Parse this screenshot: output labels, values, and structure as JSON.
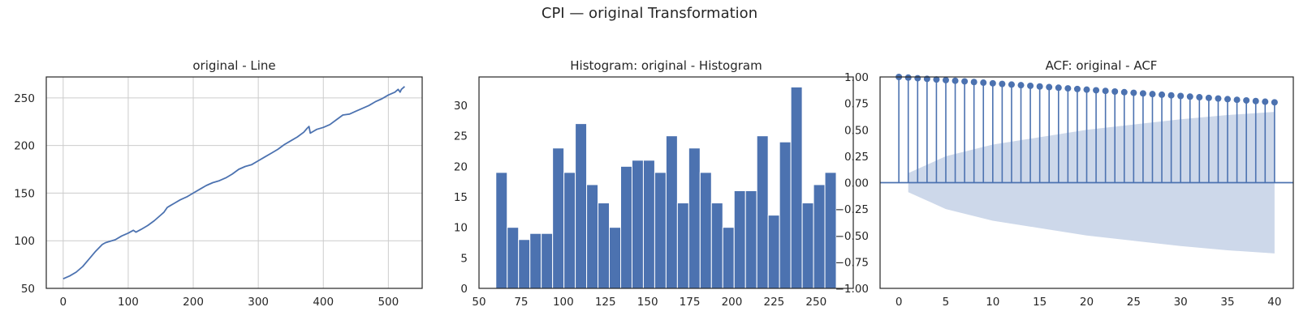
{
  "figure": {
    "suptitle": "CPI — original Transformation"
  },
  "colors": {
    "series": "#4c72b0",
    "confidence_band": "#cdd8ea",
    "grid": "#cccccc",
    "axes": "#262626",
    "background": "#ffffff"
  },
  "chart_data": [
    {
      "type": "line",
      "title": "original - Line",
      "xlabel": "",
      "ylabel": "",
      "xlim": [
        -26,
        552
      ],
      "ylim": [
        50,
        272
      ],
      "xticks": [
        0,
        100,
        200,
        300,
        400,
        500
      ],
      "yticks": [
        50,
        100,
        150,
        200,
        250
      ],
      "grid": true,
      "series": [
        {
          "x": [
            0,
            10,
            20,
            30,
            40,
            50,
            60,
            65,
            70,
            80,
            90,
            100,
            108,
            112,
            120,
            130,
            140,
            150,
            155,
            160,
            165,
            170,
            180,
            190,
            200,
            210,
            220,
            230,
            240,
            250,
            260,
            270,
            280,
            290,
            300,
            310,
            320,
            330,
            340,
            350,
            360,
            370,
            375,
            378,
            380,
            385,
            390,
            400,
            410,
            420,
            430,
            440,
            450,
            460,
            470,
            480,
            490,
            500,
            510,
            515,
            518,
            520,
            525
          ],
          "y": [
            60,
            63,
            67,
            73,
            81,
            89,
            96,
            98,
            99,
            101,
            105,
            108,
            111,
            109,
            112,
            116,
            121,
            127,
            130,
            135,
            137,
            139,
            143,
            146,
            150,
            154,
            158,
            161,
            163,
            166,
            170,
            175,
            178,
            180,
            184,
            188,
            192,
            196,
            201,
            205,
            209,
            214,
            218,
            220,
            213,
            215,
            217,
            219,
            222,
            227,
            232,
            233,
            236,
            239,
            242,
            246,
            249,
            253,
            256,
            259,
            256,
            259,
            262
          ]
        }
      ]
    },
    {
      "type": "bar",
      "title": "Histogram: original - Histogram",
      "xlabel": "",
      "ylabel": "",
      "xlim": [
        50,
        272
      ],
      "ylim": [
        0,
        34.65
      ],
      "xticks": [
        50,
        75,
        100,
        125,
        150,
        175,
        200,
        225,
        250
      ],
      "yticks": [
        0,
        5,
        10,
        15,
        20,
        25,
        30
      ],
      "grid": false,
      "bin_start": 60,
      "bin_width": 6.73,
      "values": [
        19,
        10,
        8,
        9,
        9,
        23,
        19,
        27,
        17,
        14,
        10,
        20,
        21,
        21,
        19,
        25,
        14,
        23,
        19,
        14,
        10,
        16,
        16,
        25,
        12,
        24,
        33,
        14,
        17,
        19
      ]
    },
    {
      "type": "scatter",
      "title": "ACF: original - ACF",
      "xlabel": "",
      "ylabel": "",
      "xlim": [
        -2,
        42
      ],
      "ylim": [
        -1,
        1
      ],
      "xticks": [
        0,
        5,
        10,
        15,
        20,
        25,
        30,
        35,
        40
      ],
      "yticks": [
        -1.0,
        -0.75,
        -0.5,
        -0.25,
        0.0,
        0.25,
        0.5,
        0.75,
        1.0
      ],
      "ytick_labels": [
        "−1.00",
        "−0.75",
        "−0.50",
        "−0.25",
        "0.00",
        "0.25",
        "0.50",
        "0.75",
        "1.00"
      ],
      "grid": false,
      "lags": [
        0,
        1,
        2,
        3,
        4,
        5,
        6,
        7,
        8,
        9,
        10,
        11,
        12,
        13,
        14,
        15,
        16,
        17,
        18,
        19,
        20,
        21,
        22,
        23,
        24,
        25,
        26,
        27,
        28,
        29,
        30,
        31,
        32,
        33,
        34,
        35,
        36,
        37,
        38,
        39,
        40
      ],
      "values": [
        1.0,
        0.994,
        0.988,
        0.982,
        0.976,
        0.97,
        0.964,
        0.958,
        0.952,
        0.946,
        0.94,
        0.934,
        0.928,
        0.922,
        0.916,
        0.91,
        0.904,
        0.898,
        0.892,
        0.886,
        0.88,
        0.874,
        0.868,
        0.862,
        0.856,
        0.85,
        0.844,
        0.838,
        0.832,
        0.826,
        0.82,
        0.814,
        0.808,
        0.802,
        0.796,
        0.79,
        0.784,
        0.778,
        0.772,
        0.766,
        0.76
      ],
      "confidence_band": {
        "lags": [
          1,
          5,
          10,
          15,
          20,
          25,
          30,
          35,
          40
        ],
        "upper": [
          0.09,
          0.25,
          0.36,
          0.43,
          0.5,
          0.55,
          0.6,
          0.64,
          0.67
        ]
      }
    }
  ]
}
